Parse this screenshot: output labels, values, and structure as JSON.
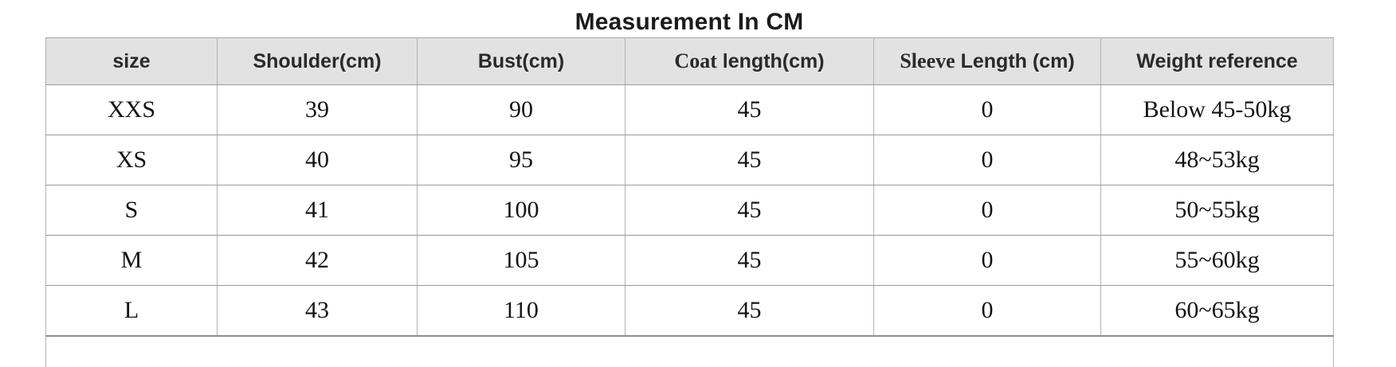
{
  "title": "Measurement In CM",
  "table": {
    "columns": [
      {
        "serif": "",
        "sans": "size"
      },
      {
        "serif": "",
        "sans": "Shoulder(cm)"
      },
      {
        "serif": "",
        "sans": "Bust(cm)"
      },
      {
        "serif": "Coat",
        "sans": " length(cm)"
      },
      {
        "serif": "Sleeve",
        "sans": " Length (cm)"
      },
      {
        "serif": "",
        "sans": "Weight reference"
      }
    ],
    "rows": [
      [
        "XXS",
        "39",
        "90",
        "45",
        "0",
        "Below 45-50kg"
      ],
      [
        "XS",
        "40",
        "95",
        "45",
        "0",
        "48~53kg"
      ],
      [
        "S",
        "41",
        "100",
        "45",
        "0",
        "50~55kg"
      ],
      [
        "M",
        "42",
        "105",
        "45",
        "0",
        "55~60kg"
      ],
      [
        "L",
        "43",
        "110",
        "45",
        "0",
        "60~65kg"
      ]
    ]
  },
  "colors": {
    "header_bg": "#e2e2e2",
    "border": "#b4b4b4",
    "border_strong": "#8f8f8f",
    "text": "#141414",
    "header_text": "#2a2a2a"
  }
}
